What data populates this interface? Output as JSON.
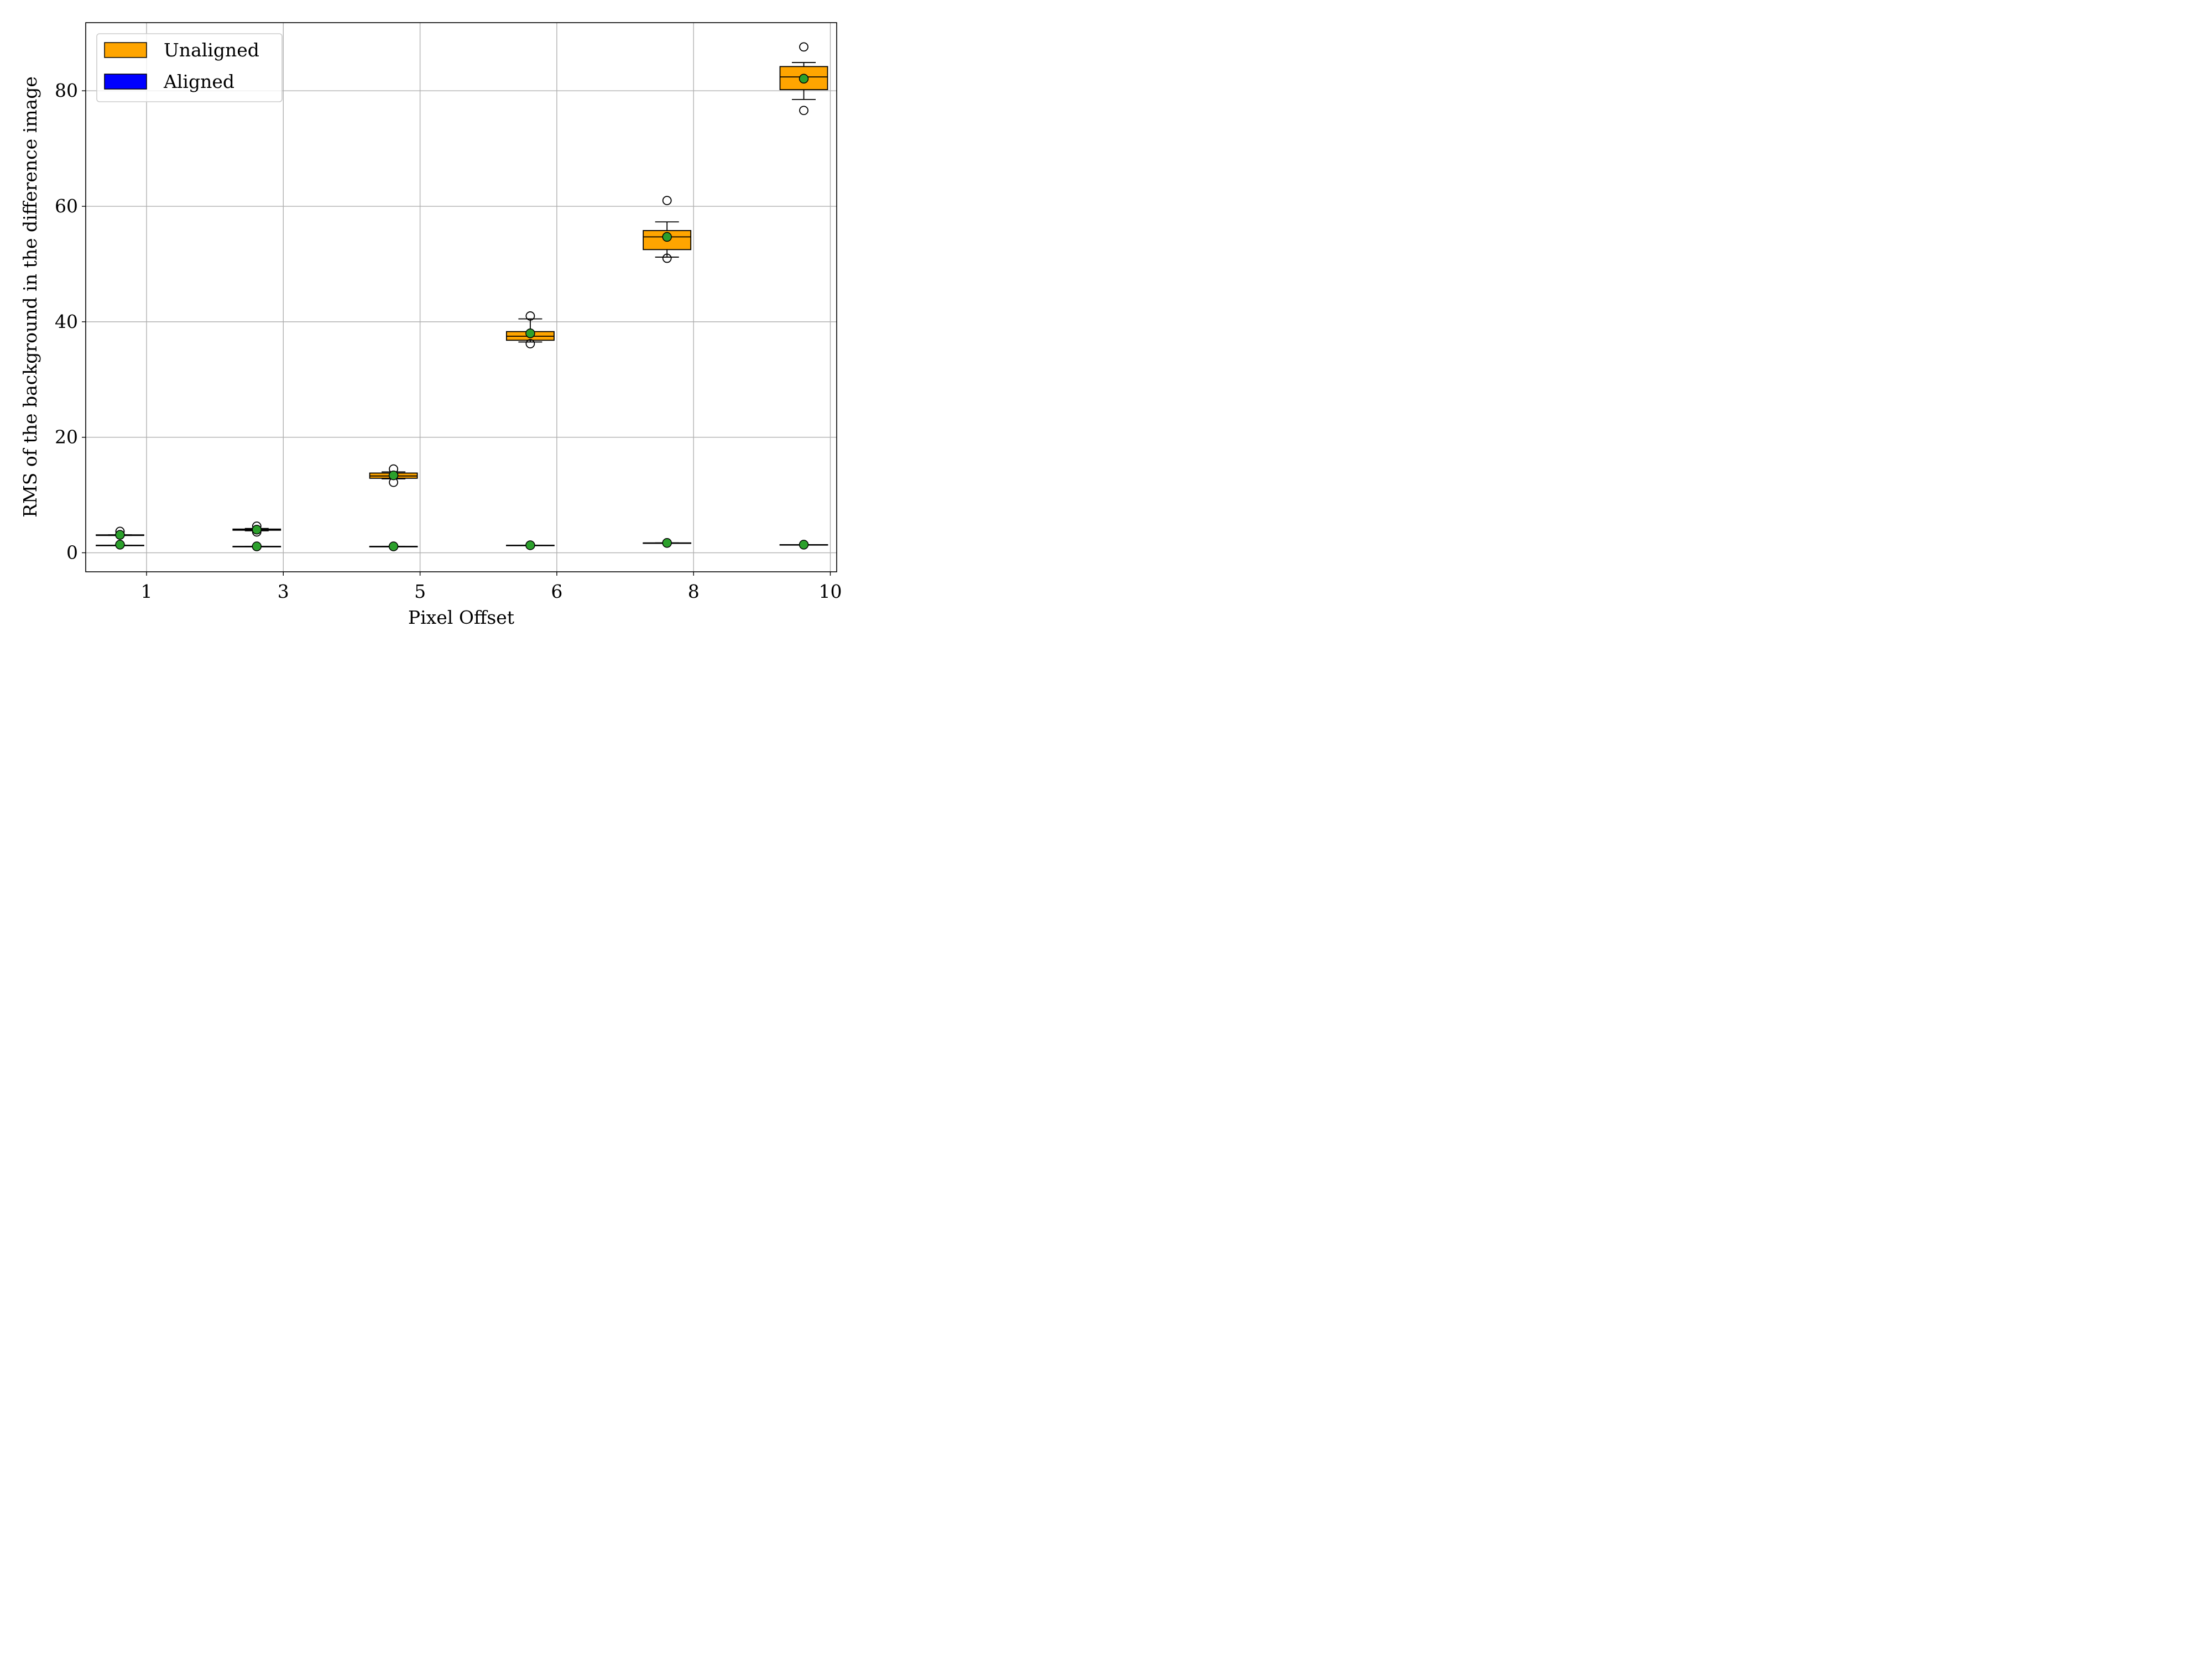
{
  "chart_data": {
    "type": "box",
    "title": "",
    "xlabel": "Pixel Offset",
    "ylabel": "RMS of the background in the difference image",
    "categories": [
      "1",
      "3",
      "5",
      "6",
      "8",
      "10"
    ],
    "y_ticks": [
      "0",
      "20",
      "40",
      "60",
      "80"
    ],
    "ylim": [
      -3.3,
      91.8
    ],
    "grid": true,
    "legend_position": "top-left",
    "series": [
      {
        "name": "Unaligned",
        "color": "#FFA500",
        "boxes": [
          {
            "category": "1",
            "whisker_low": 3.0,
            "q1": 3.0,
            "median": 3.0,
            "q3": 3.1,
            "whisker_high": 3.1,
            "mean": 3.1,
            "outliers": [
              3.7
            ]
          },
          {
            "category": "3",
            "whisker_low": 3.8,
            "q1": 3.9,
            "median": 4.0,
            "q3": 4.1,
            "whisker_high": 4.2,
            "mean": 4.0,
            "outliers": [
              3.6,
              4.6
            ]
          },
          {
            "category": "5",
            "whisker_low": 12.8,
            "q1": 12.9,
            "median": 13.3,
            "q3": 13.8,
            "whisker_high": 14.0,
            "mean": 13.4,
            "outliers": [
              12.2,
              14.5
            ]
          },
          {
            "category": "6",
            "whisker_low": 36.5,
            "q1": 36.8,
            "median": 37.5,
            "q3": 38.3,
            "whisker_high": 40.5,
            "mean": 38.0,
            "outliers": [
              36.2,
              41.0
            ]
          },
          {
            "category": "8",
            "whisker_low": 51.2,
            "q1": 52.5,
            "median": 54.7,
            "q3": 55.8,
            "whisker_high": 57.3,
            "mean": 54.7,
            "outliers": [
              51.0,
              61.0
            ]
          },
          {
            "category": "10",
            "whisker_low": 78.5,
            "q1": 80.2,
            "median": 82.4,
            "q3": 84.2,
            "whisker_high": 84.9,
            "mean": 82.1,
            "outliers": [
              76.6,
              87.6
            ]
          }
        ]
      },
      {
        "name": "Aligned",
        "color": "#0000FF",
        "boxes": [
          {
            "category": "1",
            "whisker_low": 1.3,
            "q1": 1.3,
            "median": 1.3,
            "q3": 1.3,
            "whisker_high": 1.3,
            "mean": 1.4,
            "outliers": []
          },
          {
            "category": "3",
            "whisker_low": 1.1,
            "q1": 1.1,
            "median": 1.1,
            "q3": 1.1,
            "whisker_high": 1.1,
            "mean": 1.1,
            "outliers": []
          },
          {
            "category": "5",
            "whisker_low": 1.1,
            "q1": 1.1,
            "median": 1.1,
            "q3": 1.1,
            "whisker_high": 1.1,
            "mean": 1.1,
            "outliers": []
          },
          {
            "category": "6",
            "whisker_low": 1.3,
            "q1": 1.3,
            "median": 1.3,
            "q3": 1.3,
            "whisker_high": 1.3,
            "mean": 1.3,
            "outliers": []
          },
          {
            "category": "8",
            "whisker_low": 1.7,
            "q1": 1.7,
            "median": 1.7,
            "q3": 1.7,
            "whisker_high": 1.7,
            "mean": 1.7,
            "outliers": []
          },
          {
            "category": "10",
            "whisker_low": 1.4,
            "q1": 1.4,
            "median": 1.4,
            "q3": 1.4,
            "whisker_high": 1.4,
            "mean": 1.4,
            "outliers": []
          }
        ]
      }
    ],
    "mean_marker_color": "#2CA02C",
    "grid_color": "#B0B0B0"
  }
}
